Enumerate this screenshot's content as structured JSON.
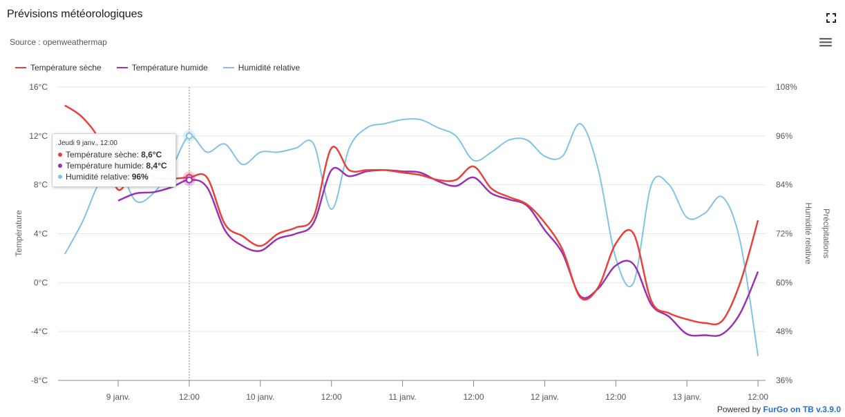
{
  "header": {
    "title": "Prévisions météorologiques",
    "subtitle": "Source : openweathermap",
    "fullscreen_icon": "fullscreen-icon",
    "menu_icon": "hamburger-menu-icon"
  },
  "footer": {
    "prefix": "Powered by ",
    "brand": "FurGo on TB v.3.9.0"
  },
  "tooltip": {
    "header": "Jeudi 9 janv., 12:00",
    "rows": [
      {
        "label": "Température sèche: ",
        "value": "8,6°C",
        "color": "#e8403a"
      },
      {
        "label": "Température humide: ",
        "value": "8,4°C",
        "color": "#9b30b0"
      },
      {
        "label": "Humidité relative: ",
        "value": "96%",
        "color": "#7ec3e6"
      }
    ]
  },
  "chart_data": {
    "type": "line",
    "title": "Prévisions météorologiques",
    "subtitle": "Source : openweathermap",
    "x_unit": "hours",
    "x_ticks": [
      {
        "x": 0,
        "label": "9 janv."
      },
      {
        "x": 12,
        "label": "12:00"
      },
      {
        "x": 24,
        "label": "10 janv."
      },
      {
        "x": 36,
        "label": "12:00"
      },
      {
        "x": 48,
        "label": "11 janv."
      },
      {
        "x": 60,
        "label": "12:00"
      },
      {
        "x": 72,
        "label": "12 janv."
      },
      {
        "x": 84,
        "label": "12:00"
      },
      {
        "x": 96,
        "label": "13 janv."
      },
      {
        "x": 108,
        "label": "12:00"
      }
    ],
    "xlim": [
      -9,
      108
    ],
    "y_axes": [
      {
        "id": "temp",
        "label": "Température",
        "min": -8,
        "max": 16,
        "ticks": [
          -8,
          -4,
          0,
          4,
          8,
          12,
          16
        ],
        "unit": "°C",
        "side": "left"
      },
      {
        "id": "hum",
        "label": "Humidité relative",
        "min": 36,
        "max": 108,
        "ticks": [
          36,
          48,
          60,
          72,
          84,
          96,
          108
        ],
        "unit": "%",
        "side": "right"
      },
      {
        "id": "precip",
        "label": "Précipitations",
        "side": "right"
      }
    ],
    "grid": true,
    "legend_position": "top-left",
    "crosshair_x": 12,
    "series": [
      {
        "name": "Température sèche",
        "axis": "temp",
        "color": "#e8403a",
        "points": [
          [
            -9,
            14.5
          ],
          [
            -6,
            13.5
          ],
          [
            -3,
            11.5
          ],
          [
            0,
            7.6
          ],
          [
            3,
            9.6
          ],
          [
            6,
            8.6
          ],
          [
            9,
            8.5
          ],
          [
            12,
            8.6
          ],
          [
            15,
            8.6
          ],
          [
            18,
            4.8
          ],
          [
            21,
            3.8
          ],
          [
            24,
            3.0
          ],
          [
            27,
            4.0
          ],
          [
            30,
            4.5
          ],
          [
            33,
            5.4
          ],
          [
            36,
            11.0
          ],
          [
            39,
            9.2
          ],
          [
            42,
            9.2
          ],
          [
            45,
            9.2
          ],
          [
            48,
            9.0
          ],
          [
            51,
            8.8
          ],
          [
            54,
            8.4
          ],
          [
            57,
            8.4
          ],
          [
            60,
            9.5
          ],
          [
            63,
            7.7
          ],
          [
            66,
            7.0
          ],
          [
            69,
            6.4
          ],
          [
            72,
            4.9
          ],
          [
            75,
            2.7
          ],
          [
            78,
            -1.2
          ],
          [
            81,
            -0.4
          ],
          [
            84,
            3.2
          ],
          [
            87,
            4.0
          ],
          [
            90,
            -1.5
          ],
          [
            93,
            -2.5
          ],
          [
            96,
            -3.0
          ],
          [
            99,
            -3.3
          ],
          [
            102,
            -3.1
          ],
          [
            105,
            0.0
          ],
          [
            108,
            5.1
          ]
        ]
      },
      {
        "name": "Température humide",
        "axis": "temp",
        "color": "#9b30b0",
        "points": [
          [
            0,
            6.7
          ],
          [
            3,
            7.3
          ],
          [
            6,
            7.4
          ],
          [
            9,
            7.8
          ],
          [
            12,
            8.4
          ],
          [
            15,
            7.8
          ],
          [
            18,
            4.3
          ],
          [
            21,
            3.0
          ],
          [
            24,
            2.6
          ],
          [
            27,
            3.6
          ],
          [
            30,
            4.0
          ],
          [
            33,
            4.9
          ],
          [
            36,
            9.2
          ],
          [
            39,
            8.7
          ],
          [
            42,
            9.1
          ],
          [
            45,
            9.2
          ],
          [
            48,
            9.1
          ],
          [
            51,
            9.0
          ],
          [
            54,
            8.3
          ],
          [
            57,
            7.9
          ],
          [
            60,
            8.6
          ],
          [
            63,
            7.3
          ],
          [
            66,
            6.8
          ],
          [
            69,
            6.3
          ],
          [
            72,
            4.3
          ],
          [
            75,
            2.4
          ],
          [
            78,
            -1.1
          ],
          [
            81,
            -0.5
          ],
          [
            84,
            1.4
          ],
          [
            87,
            1.5
          ],
          [
            90,
            -1.8
          ],
          [
            93,
            -2.8
          ],
          [
            96,
            -4.2
          ],
          [
            99,
            -4.3
          ],
          [
            102,
            -4.2
          ],
          [
            105,
            -2.5
          ],
          [
            108,
            0.9
          ]
        ]
      },
      {
        "name": "Humidité relative",
        "axis": "hum",
        "color": "#7ec3e6",
        "points": [
          [
            -9,
            67
          ],
          [
            -6,
            75
          ],
          [
            -3,
            85
          ],
          [
            0,
            88
          ],
          [
            3,
            80
          ],
          [
            6,
            82
          ],
          [
            9,
            88
          ],
          [
            12,
            96
          ],
          [
            15,
            92
          ],
          [
            18,
            94
          ],
          [
            21,
            89
          ],
          [
            24,
            92
          ],
          [
            27,
            92
          ],
          [
            30,
            93
          ],
          [
            33,
            94
          ],
          [
            36,
            78
          ],
          [
            39,
            93
          ],
          [
            42,
            98
          ],
          [
            45,
            99
          ],
          [
            48,
            100
          ],
          [
            51,
            100
          ],
          [
            54,
            98
          ],
          [
            57,
            96
          ],
          [
            60,
            90
          ],
          [
            63,
            92
          ],
          [
            66,
            95
          ],
          [
            69,
            95
          ],
          [
            72,
            91
          ],
          [
            75,
            91
          ],
          [
            78,
            99
          ],
          [
            81,
            88
          ],
          [
            84,
            66
          ],
          [
            87,
            60
          ],
          [
            90,
            84
          ],
          [
            93,
            84
          ],
          [
            96,
            76
          ],
          [
            99,
            77
          ],
          [
            102,
            81
          ],
          [
            105,
            70
          ],
          [
            108,
            42
          ]
        ]
      }
    ]
  }
}
